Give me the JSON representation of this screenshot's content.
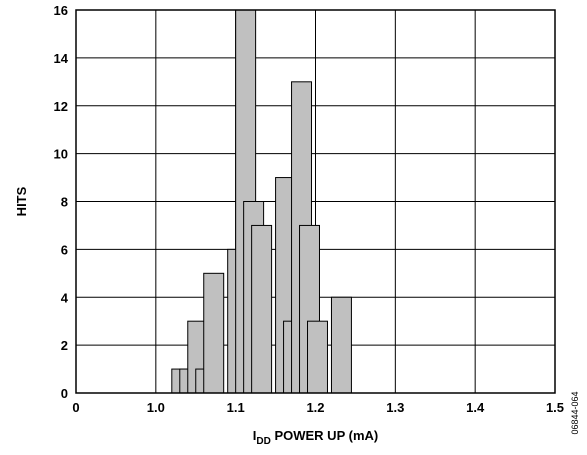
{
  "chart_data": {
    "type": "bar",
    "xlabel": {
      "main": "I",
      "subscript": "DD",
      "rest": " POWER UP (mA)"
    },
    "ylabel": "HITS",
    "xlim": [
      0,
      1.5
    ],
    "ylim": [
      0,
      16
    ],
    "xticks": [
      {
        "value": 0,
        "label": "0"
      },
      {
        "value": 0.25,
        "label": "1.0"
      },
      {
        "value": 0.5,
        "label": "1.1"
      },
      {
        "value": 0.75,
        "label": "1.2"
      },
      {
        "value": 1.0,
        "label": "1.3"
      },
      {
        "value": 1.25,
        "label": "1.4"
      },
      {
        "value": 1.5,
        "label": "1.5"
      }
    ],
    "yticks": [
      0,
      2,
      4,
      6,
      8,
      10,
      12,
      14,
      16
    ],
    "grid": true,
    "bar_width": 0.025,
    "bars": [
      {
        "x": 1.02,
        "value": 1
      },
      {
        "x": 1.03,
        "value": 1
      },
      {
        "x": 1.04,
        "value": 3
      },
      {
        "x": 1.05,
        "value": 1
      },
      {
        "x": 1.06,
        "value": 5
      },
      {
        "x": 1.09,
        "value": 6
      },
      {
        "x": 1.1,
        "value": 16
      },
      {
        "x": 1.11,
        "value": 8
      },
      {
        "x": 1.12,
        "value": 7
      },
      {
        "x": 1.15,
        "value": 9
      },
      {
        "x": 1.16,
        "value": 3
      },
      {
        "x": 1.17,
        "value": 13
      },
      {
        "x": 1.18,
        "value": 7
      },
      {
        "x": 1.19,
        "value": 3
      },
      {
        "x": 1.22,
        "value": 4
      }
    ],
    "bar_fill": "#c0c0c0",
    "bar_stroke": "#000000"
  },
  "figure_id": "06844-064"
}
